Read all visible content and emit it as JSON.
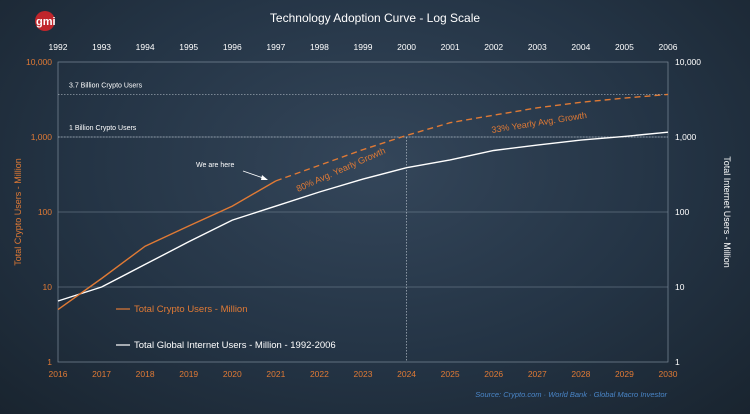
{
  "logo": {
    "text": "gmi",
    "color": "#c0262c"
  },
  "chart_data": {
    "type": "line",
    "title": "Technology Adoption Curve - Log Scale",
    "y_scale": "log",
    "ylim": [
      1,
      10000
    ],
    "y_ticks": [
      "1",
      "10",
      "100",
      "1,000",
      "10,000"
    ],
    "y_tick_values": [
      1,
      10,
      100,
      1000,
      10000
    ],
    "ylabel_left": "Total Crypto Users - Million",
    "ylabel_right": "Total Internet Users - Million",
    "x_bottom": {
      "label": "",
      "range": [
        2016,
        2030
      ],
      "ticks": [
        "2016",
        "2017",
        "2018",
        "2019",
        "2020",
        "2021",
        "2022",
        "2023",
        "2024",
        "2025",
        "2026",
        "2027",
        "2028",
        "2029",
        "2030"
      ]
    },
    "x_top": {
      "label": "",
      "range": [
        1992,
        2006
      ],
      "ticks": [
        "1992",
        "1993",
        "1994",
        "1995",
        "1996",
        "1997",
        "1998",
        "1999",
        "2000",
        "2001",
        "2002",
        "2003",
        "2004",
        "2005",
        "2006"
      ]
    },
    "grid": true,
    "series": [
      {
        "name": "Total Crypto Users - Million",
        "color": "#e07a35",
        "axis": "bottom",
        "actual": {
          "x": [
            2016,
            2017,
            2018,
            2019,
            2020,
            2021
          ],
          "y": [
            5,
            13,
            35,
            65,
            120,
            260
          ]
        },
        "projection": {
          "x": [
            2021,
            2022,
            2023,
            2024,
            2025,
            2026,
            2027,
            2028,
            2029,
            2030
          ],
          "y": [
            260,
            420,
            680,
            1050,
            1550,
            1950,
            2450,
            2900,
            3300,
            3700
          ]
        }
      },
      {
        "name": "Total Global Internet Users - Million - 1992-2006",
        "color": "#ffffff",
        "axis": "top",
        "actual": {
          "x": [
            1992,
            1993,
            1994,
            1995,
            1996,
            1997,
            1998,
            1999,
            2000,
            2001,
            2002,
            2003,
            2004,
            2005,
            2006
          ],
          "y": [
            6.5,
            10,
            20,
            40,
            78,
            120,
            185,
            275,
            390,
            495,
            660,
            780,
            910,
            1020,
            1160
          ]
        }
      }
    ],
    "reference_lines": [
      {
        "label": "3.7 Billion Crypto Users",
        "y": 3700
      },
      {
        "label": "1 Billion Crypto Users",
        "y": 1000
      }
    ],
    "vertical_marker": {
      "x": 2024
    },
    "annotations": {
      "we_are_here": "We are here",
      "growth_80": "80% Avg. Yearly Growth",
      "growth_33": "33% Yearly Avg. Growth"
    },
    "legend": "bottom-left"
  },
  "source": "Source:   Crypto.com  ·  World Bank  ·  Global Macro Investor"
}
